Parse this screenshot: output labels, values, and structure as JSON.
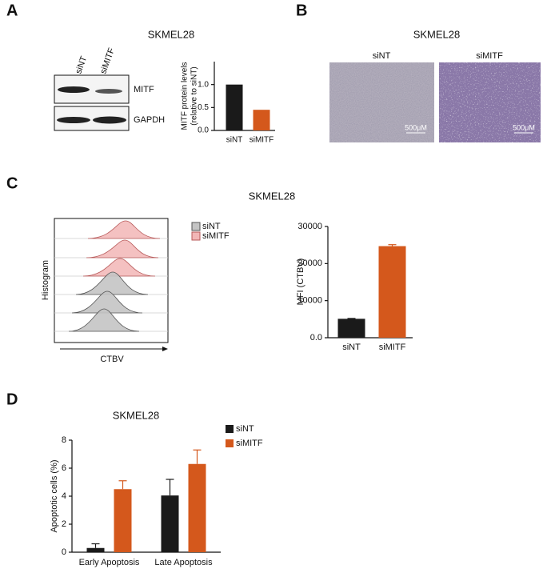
{
  "panels": [
    "A",
    "B",
    "C",
    "D"
  ],
  "blot": {
    "title": "SKMEL28",
    "lanes": [
      "siNT",
      "siMITF"
    ],
    "bands": [
      "MITF",
      "GAPDH"
    ]
  },
  "micro": {
    "title": "SKMEL28",
    "images": [
      "siNT",
      "siMITF"
    ],
    "scale_bar": "500μM"
  },
  "flow": {
    "title": "SKMEL28",
    "legend": [
      "siNT",
      "siMITF"
    ],
    "y_label": "Histogram",
    "x_label": "CTBV"
  },
  "chart_data": [
    {
      "type": "bar",
      "y_label": [
        "MITF protein levels",
        "(relative to siNT)"
      ],
      "categories": [
        "siNT",
        "siMITF"
      ],
      "values": [
        1.0,
        0.45
      ],
      "colors": [
        "#1a1a1a",
        "#d4581c"
      ],
      "ylim": [
        0,
        1.5
      ],
      "yticks": [
        {
          "value": 0,
          "label": "0.0"
        },
        {
          "value": 0.5,
          "label": "0.5"
        },
        {
          "value": 1,
          "label": "1.0"
        }
      ]
    },
    {
      "type": "bar",
      "y_label": "MFI (CTBV)",
      "categories": [
        "siNT",
        "siMITF"
      ],
      "values": [
        5100,
        24700
      ],
      "errors": [
        100,
        400
      ],
      "colors": [
        "#1a1a1a",
        "#d4581c"
      ],
      "ylim": [
        0,
        30000
      ],
      "yticks": [
        {
          "value": 0,
          "label": "0.0"
        },
        10000,
        20000,
        30000
      ]
    },
    {
      "type": "bar",
      "title": "SKMEL28",
      "y_label": "Apoptotic cells (%)",
      "categories": [
        "Early Apoptosis",
        "Late Apoptosis"
      ],
      "series": [
        {
          "name": "siNT",
          "color": "#1a1a1a",
          "values": [
            0.3,
            4.05
          ],
          "errors": [
            0.3,
            1.15
          ]
        },
        {
          "name": "siMITF",
          "color": "#d4581c",
          "values": [
            4.5,
            6.3
          ],
          "errors": [
            0.6,
            1.0
          ]
        }
      ],
      "ylim": [
        0,
        8
      ],
      "yticks": [
        0,
        2,
        4,
        6,
        8
      ]
    }
  ]
}
